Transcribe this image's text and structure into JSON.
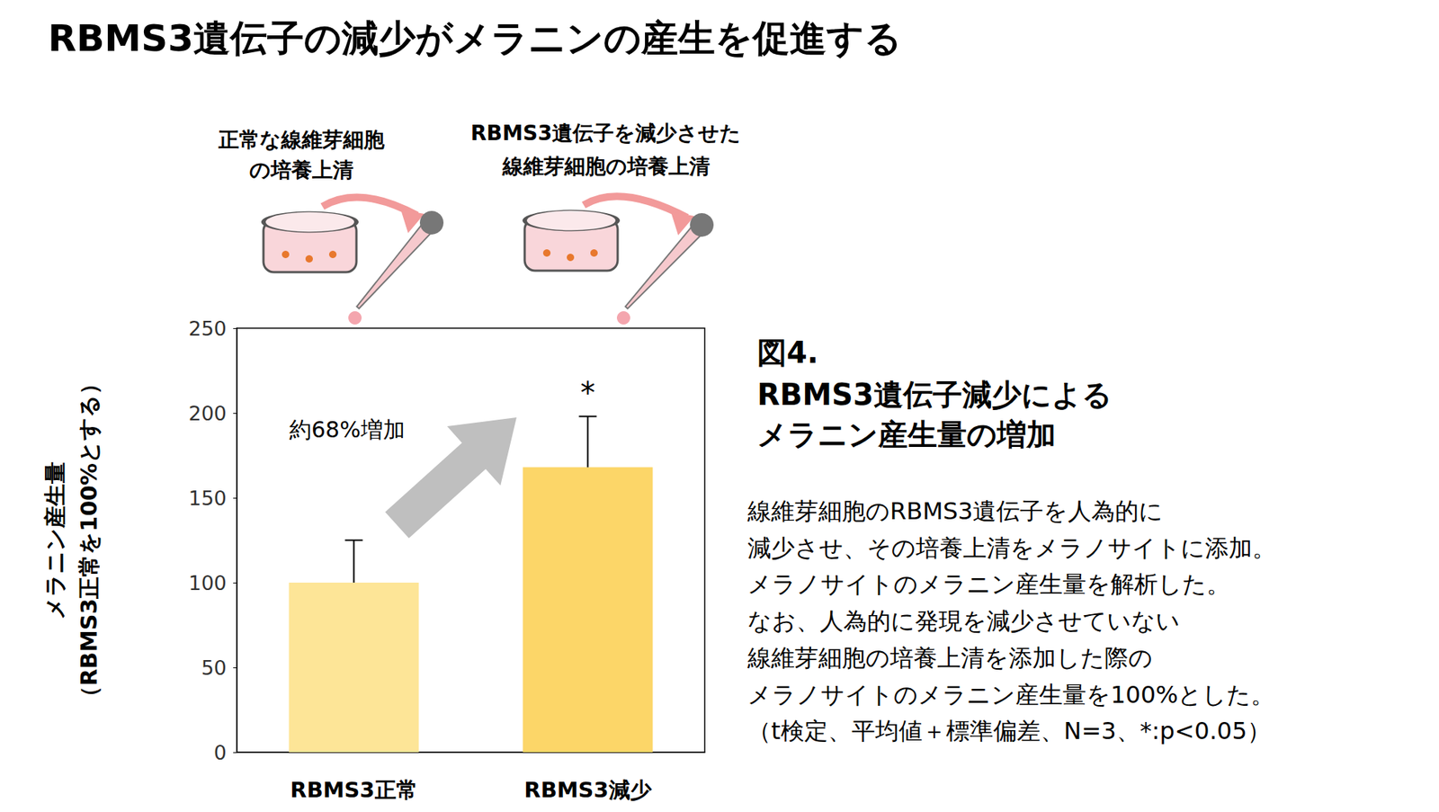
{
  "chart_data": {
    "type": "bar",
    "title": "RBMS3遺伝子の減少がメラニンの産生を促進する",
    "categories": [
      "RBMS3正常",
      "RBMS3減少"
    ],
    "values": [
      100,
      168
    ],
    "errors": [
      25,
      30
    ],
    "colors": [
      "#fde597",
      "#fcd668"
    ],
    "ylim": [
      0,
      250
    ],
    "yticks": [
      0,
      50,
      100,
      150,
      200,
      250
    ],
    "ylabel": [
      "メラニン産生量",
      "（RBMS3正常を100%とする）"
    ],
    "grid": false,
    "significance": [
      null,
      "*"
    ],
    "annotations": [
      {
        "text": "約68%増加"
      }
    ],
    "category_headers": [
      [
        "正常な線維芽細胞",
        "の培養上清"
      ],
      [
        "RBMS3遺伝子を減少させた",
        "線維芽細胞の培養上清"
      ]
    ],
    "caption": {
      "label": "図4.",
      "title": [
        "RBMS3遺伝子減少による",
        "メラニン産生量の増加"
      ],
      "text": [
        "線維芽細胞のRBMS3遺伝子を人為的に",
        "減少させ、その培養上清をメラノサイトに添加。",
        "メラノサイトのメラニン産生量を解析した。",
        "なお、人為的に発現を減少させていない",
        "線維芽細胞の培養上清を添加した際の",
        "メラノサイトのメラニン産生量を100%とした。",
        "（t検定、平均値＋標準偏差、N=3、*:p<0.05）"
      ]
    }
  }
}
